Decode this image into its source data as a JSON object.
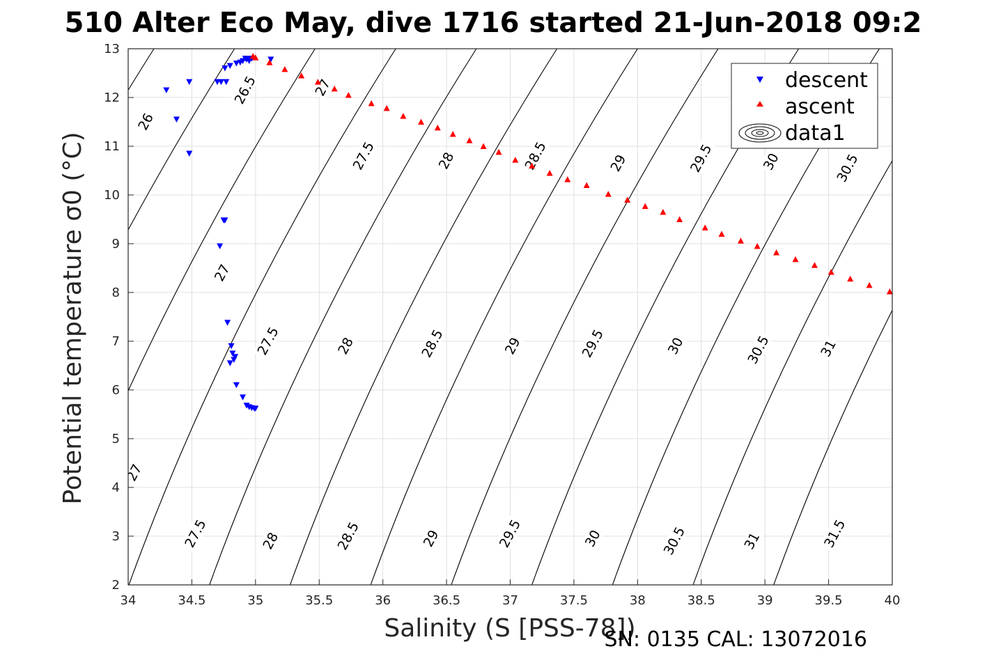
{
  "title": "510 Alter Eco May, dive 1716 started 21-Jun-2018 09:2",
  "footer": "SN: 0135  CAL: 13072016",
  "chart_data": {
    "type": "scatter",
    "title": "510 Alter Eco May, dive 1716 started 21-Jun-2018 09:2",
    "xlabel": "Salinity (S [PSS-78])",
    "ylabel": "Potential temperature σ0 (°C)",
    "xlim": [
      34,
      40
    ],
    "ylim": [
      2,
      13
    ],
    "xticks": [
      "34",
      "34.5",
      "35",
      "35.5",
      "36",
      "36.5",
      "37",
      "37.5",
      "38",
      "38.5",
      "39",
      "39.5",
      "40"
    ],
    "yticks": [
      "2",
      "3",
      "4",
      "5",
      "6",
      "7",
      "8",
      "9",
      "10",
      "11",
      "12",
      "13"
    ],
    "grid": true,
    "legend": {
      "position": "top-right",
      "entries": [
        "descent",
        "ascent",
        "data1"
      ]
    },
    "contour_levels": [
      26,
      26.5,
      27,
      27.5,
      28,
      28.5,
      29,
      29.5,
      30,
      30.5,
      31,
      31.5
    ],
    "contour_labels": [
      {
        "text": "26",
        "s": 34.14,
        "t": 11.5
      },
      {
        "text": "26.5",
        "s": 34.92,
        "t": 12.15
      },
      {
        "text": "27",
        "s": 35.53,
        "t": 12.2
      },
      {
        "text": "27.5",
        "s": 35.85,
        "t": 10.8
      },
      {
        "text": "28",
        "s": 36.5,
        "t": 10.7
      },
      {
        "text": "28.5",
        "s": 37.2,
        "t": 10.8
      },
      {
        "text": "29",
        "s": 37.85,
        "t": 10.65
      },
      {
        "text": "29.5",
        "s": 38.5,
        "t": 10.75
      },
      {
        "text": "30",
        "s": 39.05,
        "t": 10.68
      },
      {
        "text": "30.5",
        "s": 39.65,
        "t": 10.55
      },
      {
        "text": "27",
        "s": 34.74,
        "t": 8.4
      },
      {
        "text": "27.5",
        "s": 35.1,
        "t": 7.0
      },
      {
        "text": "28",
        "s": 35.71,
        "t": 6.9
      },
      {
        "text": "28.5",
        "s": 36.39,
        "t": 6.95
      },
      {
        "text": "29",
        "s": 37.02,
        "t": 6.9
      },
      {
        "text": "29.5",
        "s": 37.65,
        "t": 6.95
      },
      {
        "text": "30",
        "s": 38.3,
        "t": 6.9
      },
      {
        "text": "30.5",
        "s": 38.95,
        "t": 6.82
      },
      {
        "text": "31",
        "s": 39.5,
        "t": 6.85
      },
      {
        "text": "27",
        "s": 34.05,
        "t": 4.3
      },
      {
        "text": "27.5",
        "s": 34.53,
        "t": 3.05
      },
      {
        "text": "28",
        "s": 35.12,
        "t": 2.9
      },
      {
        "text": "28.5",
        "s": 35.73,
        "t": 3.0
      },
      {
        "text": "29",
        "s": 36.38,
        "t": 2.95
      },
      {
        "text": "29.5",
        "s": 37.0,
        "t": 3.05
      },
      {
        "text": "30",
        "s": 37.65,
        "t": 2.95
      },
      {
        "text": "30.5",
        "s": 38.29,
        "t": 2.9
      },
      {
        "text": "31",
        "s": 38.9,
        "t": 2.9
      },
      {
        "text": "31.5",
        "s": 39.55,
        "t": 3.05
      }
    ],
    "series": [
      {
        "name": "descent",
        "color": "#0000ff",
        "marker": "triangle-down",
        "x": [
          34.3,
          34.38,
          34.48,
          34.48,
          34.7,
          34.73,
          34.76,
          34.77,
          34.76,
          34.8,
          34.85,
          34.88,
          34.9,
          34.92,
          34.93,
          34.95,
          34.97,
          35.12,
          34.95,
          34.75,
          34.72,
          34.78,
          34.81,
          34.82,
          34.84,
          34.83,
          34.8,
          34.85,
          34.9,
          34.93,
          34.95,
          34.97,
          34.99,
          35.0
        ],
        "y": [
          12.15,
          11.55,
          12.32,
          10.85,
          12.32,
          12.32,
          12.6,
          12.32,
          9.48,
          12.65,
          12.7,
          12.72,
          12.75,
          12.8,
          12.78,
          12.8,
          12.8,
          12.78,
          12.75,
          9.48,
          8.95,
          7.38,
          6.9,
          6.75,
          6.68,
          6.62,
          6.55,
          6.1,
          5.85,
          5.68,
          5.65,
          5.63,
          5.62,
          5.62
        ]
      },
      {
        "name": "ascent",
        "color": "#ff0000",
        "marker": "triangle-up",
        "x": [
          34.98,
          35.0,
          35.11,
          35.23,
          35.36,
          35.49,
          35.62,
          35.73,
          35.91,
          36.03,
          36.16,
          36.3,
          36.43,
          36.55,
          36.68,
          36.79,
          36.91,
          37.04,
          37.17,
          37.31,
          37.45,
          37.6,
          37.77,
          37.92,
          38.06,
          38.2,
          38.33,
          38.53,
          38.66,
          38.81,
          38.94,
          39.09,
          39.24,
          39.39,
          39.52,
          39.67,
          39.82,
          39.98
        ],
        "y": [
          12.85,
          12.82,
          12.72,
          12.58,
          12.45,
          12.32,
          12.18,
          12.05,
          11.88,
          11.78,
          11.62,
          11.5,
          11.38,
          11.25,
          11.12,
          11.0,
          10.88,
          10.72,
          10.6,
          10.45,
          10.32,
          10.2,
          10.02,
          9.9,
          9.77,
          9.65,
          9.5,
          9.33,
          9.2,
          9.06,
          8.95,
          8.82,
          8.68,
          8.56,
          8.42,
          8.28,
          8.15,
          8.02
        ]
      }
    ]
  }
}
